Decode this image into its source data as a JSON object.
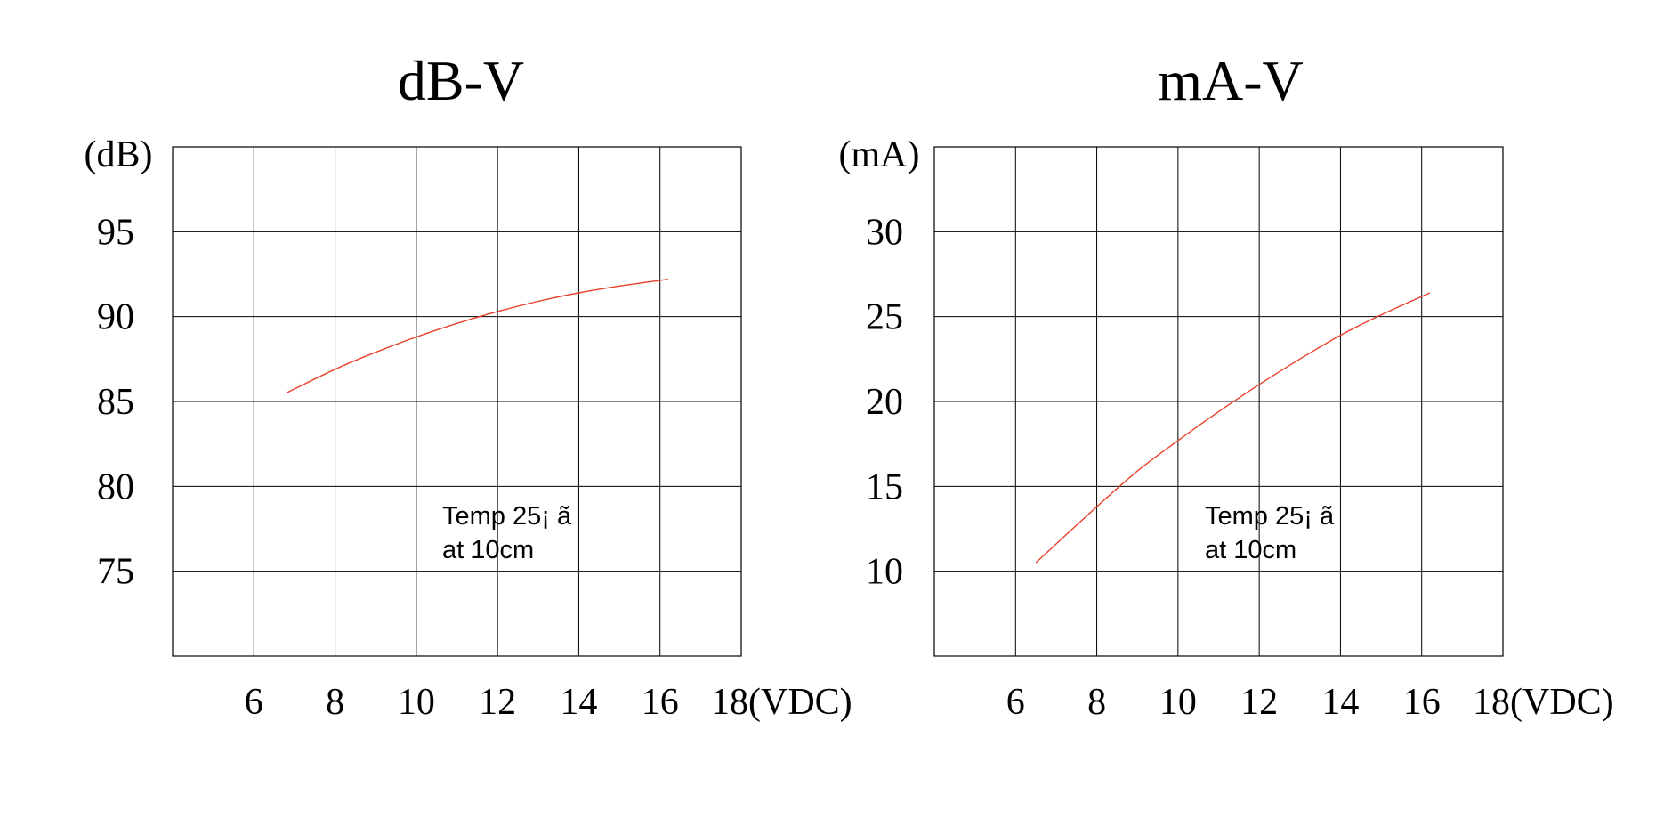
{
  "chart_data": [
    {
      "type": "line",
      "title": "dB-V",
      "ylabel": "(dB)",
      "xlabel": "(VDC)",
      "x_ticks": [
        "6",
        "8",
        "10",
        "12",
        "14",
        "16",
        "18"
      ],
      "y_ticks": [
        "95",
        "90",
        "85",
        "80",
        "75"
      ],
      "xlim": [
        4,
        18
      ],
      "ylim": [
        70,
        100
      ],
      "grid": true,
      "annotation": [
        "Temp 25¡ ã",
        "at 10cm"
      ],
      "series": [
        {
          "color": "#e8412c",
          "x": [
            6.8,
            8,
            9,
            10,
            11,
            12,
            13,
            14,
            15,
            16.2
          ],
          "y": [
            85.5,
            86.9,
            87.9,
            88.8,
            89.6,
            90.3,
            90.9,
            91.4,
            91.8,
            92.2
          ]
        }
      ]
    },
    {
      "type": "line",
      "title": "mA-V",
      "ylabel": "(mA)",
      "xlabel": "(VDC)",
      "x_ticks": [
        "6",
        "8",
        "10",
        "12",
        "14",
        "16",
        "18"
      ],
      "y_ticks": [
        "30",
        "25",
        "20",
        "15",
        "10"
      ],
      "xlim": [
        4,
        18
      ],
      "ylim": [
        5,
        35
      ],
      "grid": true,
      "annotation": [
        "Temp 25¡ ã",
        "at 10cm"
      ],
      "series": [
        {
          "color": "#e8412c",
          "x": [
            6.5,
            8,
            9,
            10,
            11,
            12,
            13,
            14,
            15,
            16.2
          ],
          "y": [
            10.5,
            13.8,
            15.9,
            17.7,
            19.4,
            21.0,
            22.5,
            23.9,
            25.1,
            26.4
          ]
        }
      ]
    }
  ]
}
